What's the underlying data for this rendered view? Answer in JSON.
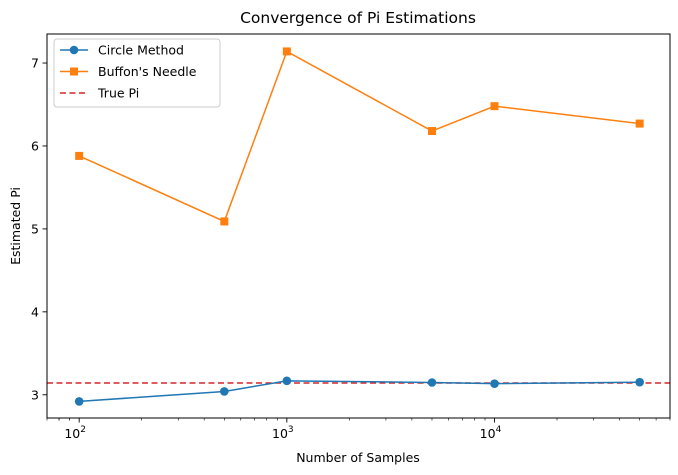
{
  "chart_data": {
    "type": "line",
    "title": "Convergence of Pi Estimations",
    "xlabel": "Number of Samples",
    "ylabel": "Estimated Pi",
    "xscale": "log",
    "xlim": [
      70,
      70000
    ],
    "ylim": [
      2.72,
      7.35
    ],
    "x": [
      100,
      500,
      1000,
      5000,
      10000,
      50000
    ],
    "xticks": [
      {
        "value": 100,
        "base": "10",
        "exp": "2"
      },
      {
        "value": 1000,
        "base": "10",
        "exp": "3"
      },
      {
        "value": 10000,
        "base": "10",
        "exp": "4"
      }
    ],
    "yticks": [
      3,
      4,
      5,
      6,
      7
    ],
    "series": [
      {
        "name": "Circle Method",
        "color": "#1f77b4",
        "marker": "circle",
        "values": [
          2.92,
          3.04,
          3.168,
          3.148,
          3.134,
          3.152
        ]
      },
      {
        "name": "Buffon's Needle",
        "color": "#ff7f0e",
        "marker": "square",
        "values": [
          5.88,
          5.09,
          7.14,
          6.18,
          6.48,
          6.27
        ]
      }
    ],
    "reference_line": {
      "name": "True Pi",
      "value": 3.14159,
      "color": "#d62728",
      "style": "dashed"
    },
    "legend": {
      "position": "upper-left"
    },
    "grid": false
  }
}
